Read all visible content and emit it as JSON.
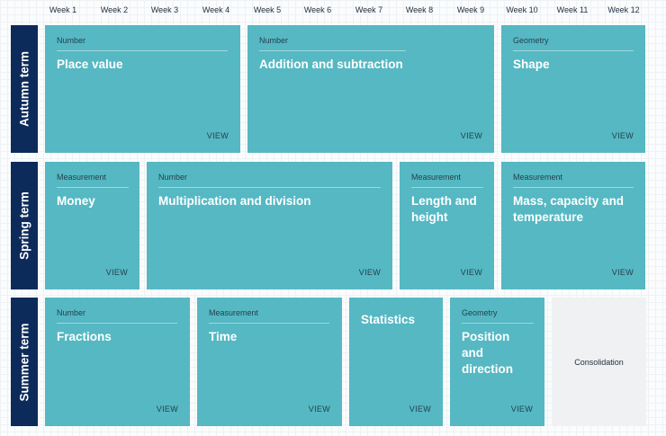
{
  "weeks": [
    "Week 1",
    "Week 2",
    "Week 3",
    "Week 4",
    "Week 5",
    "Week 6",
    "Week 7",
    "Week 8",
    "Week 9",
    "Week 10",
    "Week 11",
    "Week 12"
  ],
  "terms": [
    "Autumn term",
    "Spring term",
    "Summer term"
  ],
  "autumn": [
    {
      "category": "Number",
      "title": "Place value",
      "view": "VIEW"
    },
    {
      "category": "Number",
      "title": "Addition and subtraction",
      "view": "VIEW"
    },
    {
      "category": "Geometry",
      "title": "Shape",
      "view": "VIEW"
    }
  ],
  "spring": [
    {
      "category": "Measurement",
      "title": "Money",
      "view": "VIEW"
    },
    {
      "category": "Number",
      "title": "Multiplication and division",
      "view": "VIEW"
    },
    {
      "category": "Measurement",
      "title": "Length and height",
      "view": "VIEW"
    },
    {
      "category": "Measurement",
      "title": "Mass, capacity and temperature",
      "view": "VIEW"
    }
  ],
  "summer": [
    {
      "category": "Number",
      "title": "Fractions",
      "view": "VIEW"
    },
    {
      "category": "Measurement",
      "title": "Time",
      "view": "VIEW"
    },
    {
      "category": "",
      "title": "Statistics",
      "view": "VIEW"
    },
    {
      "category": "Geometry",
      "title": "Position and direction",
      "view": "VIEW"
    }
  ],
  "consolidation": "Consolidation",
  "colors": {
    "card": "#55b8c3",
    "term_bar": "#0d2b5a",
    "consolidation_bg": "#eff1f3"
  }
}
